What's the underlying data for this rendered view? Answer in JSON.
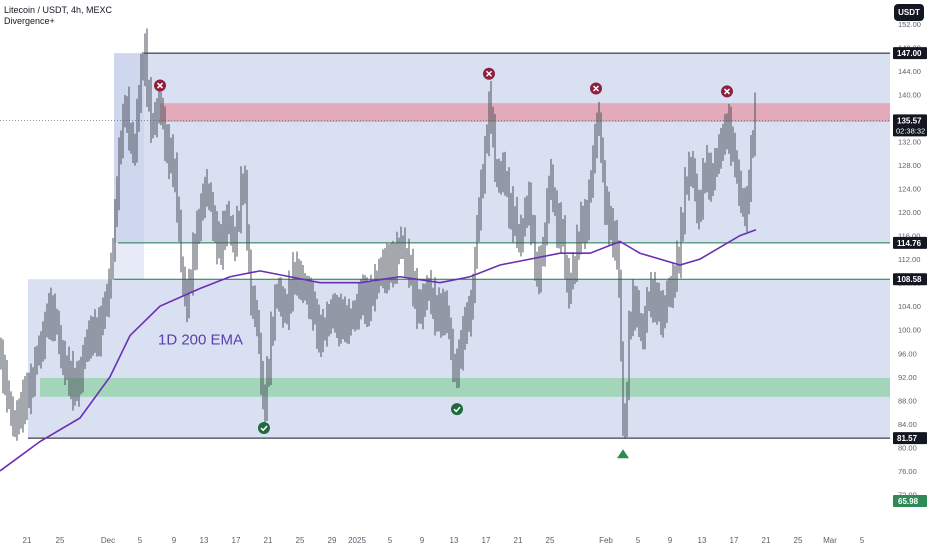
{
  "header": {
    "title": "Litecoin / USDT, 4h, MEXC",
    "indicator": "Divergence+",
    "currency_button": "USDT"
  },
  "annotation": "1D 200 EMA",
  "colors": {
    "candle": "#4a4f5a",
    "ema": "#6a2fb5",
    "box_fill": "#b9c6e8",
    "resistance_zone": "#e59aa6",
    "support_zone": "#8fd2a6",
    "level_line": "#1e7a4a",
    "range_line": "#131722",
    "label_bg": "#131722",
    "green_tag": "#2e8b57",
    "price_bg": "#131722"
  },
  "chart_data": {
    "type": "candlestick",
    "symbol": "LTCUSDT",
    "interval": "4h",
    "exchange": "MEXC",
    "ylim": [
      68,
      154
    ],
    "x_ticks": [
      "21",
      "25",
      "Dec",
      "5",
      "9",
      "13",
      "17",
      "21",
      "25",
      "29",
      "2025",
      "5",
      "9",
      "13",
      "17",
      "21",
      "25",
      "Feb",
      "5",
      "9",
      "13",
      "17",
      "21",
      "25",
      "Mar",
      "5"
    ],
    "y_ticks": [
      152,
      148,
      144,
      140,
      136,
      132,
      128,
      124,
      120,
      116,
      112,
      108,
      104,
      100,
      96,
      92,
      88,
      84,
      80,
      76,
      72
    ],
    "price_path": [
      [
        0,
        95
      ],
      [
        8,
        88
      ],
      [
        18,
        84
      ],
      [
        28,
        90
      ],
      [
        40,
        96
      ],
      [
        48,
        104
      ],
      [
        56,
        100
      ],
      [
        66,
        94
      ],
      [
        74,
        89
      ],
      [
        84,
        96
      ],
      [
        96,
        100
      ],
      [
        106,
        103
      ],
      [
        112,
        112
      ],
      [
        118,
        128
      ],
      [
        126,
        138
      ],
      [
        134,
        130
      ],
      [
        140,
        141
      ],
      [
        145,
        147
      ],
      [
        152,
        134
      ],
      [
        160,
        138
      ],
      [
        168,
        131
      ],
      [
        176,
        124
      ],
      [
        182,
        110
      ],
      [
        188,
        104
      ],
      [
        196,
        116
      ],
      [
        204,
        124
      ],
      [
        212,
        120
      ],
      [
        220,
        114
      ],
      [
        228,
        118
      ],
      [
        236,
        116
      ],
      [
        244,
        126
      ],
      [
        250,
        108
      ],
      [
        256,
        102
      ],
      [
        264,
        86
      ],
      [
        270,
        98
      ],
      [
        278,
        106
      ],
      [
        286,
        104
      ],
      [
        294,
        108
      ],
      [
        300,
        110
      ],
      [
        308,
        105
      ],
      [
        316,
        102
      ],
      [
        324,
        99
      ],
      [
        334,
        104
      ],
      [
        344,
        100
      ],
      [
        352,
        103
      ],
      [
        360,
        104
      ],
      [
        370,
        106
      ],
      [
        378,
        108
      ],
      [
        386,
        112
      ],
      [
        394,
        110
      ],
      [
        402,
        116
      ],
      [
        410,
        109
      ],
      [
        418,
        104
      ],
      [
        426,
        106
      ],
      [
        436,
        104
      ],
      [
        446,
        102
      ],
      [
        456,
        93
      ],
      [
        464,
        99
      ],
      [
        472,
        106
      ],
      [
        478,
        118
      ],
      [
        484,
        128
      ],
      [
        490,
        141
      ],
      [
        496,
        124
      ],
      [
        504,
        128
      ],
      [
        512,
        118
      ],
      [
        520,
        116
      ],
      [
        528,
        122
      ],
      [
        536,
        110
      ],
      [
        544,
        114
      ],
      [
        550,
        126
      ],
      [
        556,
        120
      ],
      [
        562,
        116
      ],
      [
        568,
        106
      ],
      [
        574,
        112
      ],
      [
        580,
        116
      ],
      [
        586,
        118
      ],
      [
        592,
        128
      ],
      [
        598,
        136
      ],
      [
        604,
        124
      ],
      [
        612,
        116
      ],
      [
        618,
        112
      ],
      [
        624,
        81
      ],
      [
        630,
        102
      ],
      [
        636,
        104
      ],
      [
        642,
        100
      ],
      [
        648,
        104
      ],
      [
        656,
        106
      ],
      [
        664,
        102
      ],
      [
        672,
        108
      ],
      [
        680,
        114
      ],
      [
        686,
        124
      ],
      [
        692,
        130
      ],
      [
        698,
        118
      ],
      [
        706,
        128
      ],
      [
        714,
        126
      ],
      [
        722,
        132
      ],
      [
        728,
        136
      ],
      [
        734,
        128
      ],
      [
        740,
        124
      ],
      [
        746,
        120
      ],
      [
        752,
        130
      ],
      [
        756,
        138
      ]
    ],
    "ema_200_1d": [
      [
        0,
        76
      ],
      [
        40,
        81
      ],
      [
        80,
        85
      ],
      [
        110,
        92
      ],
      [
        130,
        99
      ],
      [
        160,
        104
      ],
      [
        200,
        107
      ],
      [
        230,
        109
      ],
      [
        260,
        110
      ],
      [
        290,
        109
      ],
      [
        320,
        108
      ],
      [
        360,
        108
      ],
      [
        400,
        109
      ],
      [
        440,
        108
      ],
      [
        470,
        109
      ],
      [
        500,
        111
      ],
      [
        530,
        112
      ],
      [
        560,
        113
      ],
      [
        590,
        113
      ],
      [
        620,
        115
      ],
      [
        640,
        113
      ],
      [
        660,
        112
      ],
      [
        680,
        111
      ],
      [
        700,
        112
      ],
      [
        720,
        114
      ],
      [
        740,
        116
      ],
      [
        756,
        117
      ]
    ],
    "x_range": [
      0,
      890
    ],
    "range_box_upper": {
      "top": 147.0,
      "bottom": 114.76
    },
    "range_box_lower": {
      "top": 108.58,
      "bottom": 81.57
    },
    "resistance_zone": {
      "top": 138.5,
      "bottom": 135.3
    },
    "support_zone": {
      "top": 91.8,
      "bottom": 88.6
    },
    "levels": [
      147.0,
      114.76,
      108.58,
      81.57
    ],
    "level_labels": [
      "147.00",
      "114.76",
      "108.58",
      "81.57"
    ],
    "current_price": "135.57",
    "countdown": "02:38:32",
    "bottom_value": "65.98",
    "rejection_marks": [
      {
        "x": 160,
        "y": 141.5
      },
      {
        "x": 489,
        "y": 143.5
      },
      {
        "x": 596,
        "y": 141.0
      },
      {
        "x": 727,
        "y": 140.5
      }
    ],
    "support_checks": [
      {
        "x": 264,
        "y": 83.3
      },
      {
        "x": 457,
        "y": 86.5
      }
    ],
    "arrow_up": {
      "x": 623,
      "y": 79
    }
  }
}
